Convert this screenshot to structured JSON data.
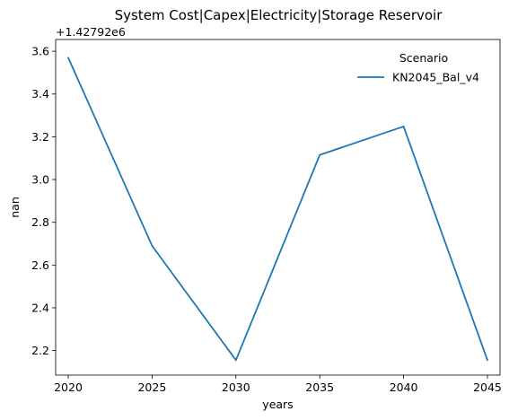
{
  "chart_data": {
    "type": "line",
    "title": "System Cost|Capex|Electricity|Storage Reservoir",
    "xlabel": "years",
    "ylabel": "nan",
    "y_offset_label": "+1.42792e6",
    "x": [
      2020,
      2025,
      2030,
      2035,
      2040,
      2045
    ],
    "x_ticks": [
      "2020",
      "2025",
      "2030",
      "2035",
      "2040",
      "2045"
    ],
    "y_ticks": [
      "2.2",
      "2.4",
      "2.6",
      "2.8",
      "3.0",
      "3.2",
      "3.4",
      "3.6"
    ],
    "xlim": [
      2019.25,
      2045.75
    ],
    "ylim": [
      2.085,
      3.655
    ],
    "legend": {
      "title": "Scenario",
      "placement": "top-right"
    },
    "series": [
      {
        "name": "KN2045_Bal_v4",
        "color": "#1f77b4",
        "values": [
          3.57,
          2.69,
          2.155,
          3.115,
          3.248,
          2.155
        ]
      }
    ]
  }
}
